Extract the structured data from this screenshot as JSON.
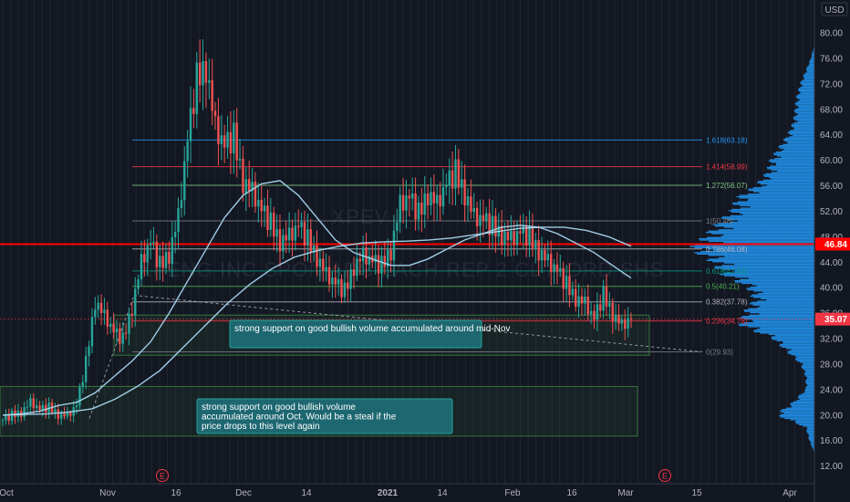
{
  "chart_data": {
    "type": "candlestick",
    "currency": "USD",
    "watermark": "XPENG INC SPON ADS EACH REP 2 CL A ORD SHS",
    "watermark_ticker": "XPEV",
    "x_tick_labels": [
      "Oct",
      "Nov",
      "16",
      "Dec",
      "14",
      "2021",
      "14",
      "Feb",
      "16",
      "Mar",
      "15",
      "Apr"
    ],
    "y_tick_labels": [
      "12.00",
      "16.00",
      "20.00",
      "24.00",
      "28.00",
      "32.00",
      "36.00",
      "40.00",
      "44.00",
      "48.00",
      "52.00",
      "56.00",
      "60.00",
      "64.00",
      "68.00",
      "72.00",
      "76.00",
      "80.00"
    ],
    "ylim": [
      10.5,
      82.5
    ],
    "earnings_markers": [
      "E",
      "E"
    ],
    "current_price": {
      "label": "35.07",
      "value": 35.07,
      "color": "#f23645"
    },
    "horizontal_line": {
      "label": "46.84",
      "value": 46.84,
      "color": "#ff0000"
    },
    "fib_levels": [
      {
        "label": "1.618(63.18)",
        "value": 63.18,
        "color": "#2196f3"
      },
      {
        "label": "1.414(58.99)",
        "value": 58.99,
        "color": "#f23645"
      },
      {
        "label": "1.272(56.07)",
        "value": 56.07,
        "color": "#81c784"
      },
      {
        "label": "1(50.48)",
        "value": 50.48,
        "color": "#787b86"
      },
      {
        "label": "0.786(46.08)",
        "value": 46.08,
        "color": "#b2b5be"
      },
      {
        "label": "0.618(42.63)",
        "value": 42.63,
        "color": "#089981"
      },
      {
        "label": "0.5(40.21)",
        "value": 40.21,
        "color": "#4caf50"
      },
      {
        "label": "0.382(37.78)",
        "value": 37.78,
        "color": "#b2b5be"
      },
      {
        "label": "0.236(34.78)",
        "value": 34.78,
        "color": "#f23645"
      },
      {
        "label": "0(29.93)",
        "value": 29.93,
        "color": "#787b86"
      }
    ],
    "annotations": [
      {
        "text": "strong support on good bullish volume accumulated around mid-Nov"
      },
      {
        "text": "strong support on good bullish volume accumulated around Oct. Would be a steal if the price drops to this level again"
      }
    ],
    "close_path": [
      [
        "Oct",
        19.2
      ],
      [
        "Oct",
        19.8
      ],
      [
        "Oct",
        20.5
      ],
      [
        "Oct",
        22.0
      ],
      [
        "Oct",
        20.8
      ],
      [
        "Oct",
        21.0
      ],
      [
        "Oct",
        20.2
      ],
      [
        "Nov",
        19.8
      ],
      [
        "Nov",
        21.5
      ],
      [
        "Nov",
        28.0
      ],
      [
        "Nov",
        38.0
      ],
      [
        "Nov",
        35.5
      ],
      [
        "Nov",
        33.0
      ],
      [
        "Nov",
        31.5
      ],
      [
        "16",
        37.0
      ],
      [
        "16",
        44.0
      ],
      [
        "16",
        47.0
      ],
      [
        "16",
        43.0
      ],
      [
        "16",
        45.5
      ],
      [
        "16",
        51.0
      ],
      [
        "16",
        63.0
      ],
      [
        "16",
        72.0
      ],
      [
        "16",
        75.0
      ],
      [
        "16",
        65.0
      ],
      [
        "16",
        62.0
      ],
      [
        "Dec",
        63.0
      ],
      [
        "Dec",
        57.0
      ],
      [
        "Dec",
        55.0
      ],
      [
        "Dec",
        52.0
      ],
      [
        "Dec",
        49.5
      ],
      [
        "Dec",
        47.5
      ],
      [
        "14",
        48.0
      ],
      [
        "14",
        49.5
      ],
      [
        "14",
        47.0
      ],
      [
        "14",
        45.0
      ],
      [
        "14",
        42.0
      ],
      [
        "14",
        40.5
      ],
      [
        "14",
        39.0
      ],
      [
        "2021",
        43.5
      ],
      [
        "2021",
        45.0
      ],
      [
        "2021",
        44.0
      ],
      [
        "2021",
        43.0
      ],
      [
        "2021",
        46.0
      ],
      [
        "14",
        53.0
      ],
      [
        "14",
        54.0
      ],
      [
        "14",
        51.0
      ],
      [
        "14",
        55.0
      ],
      [
        "14",
        53.0
      ],
      [
        "14",
        56.0
      ],
      [
        "14",
        57.5
      ],
      [
        "14",
        55.0
      ],
      [
        "Feb",
        51.0
      ],
      [
        "Feb",
        50.5
      ],
      [
        "Feb",
        49.0
      ],
      [
        "Feb",
        48.5
      ],
      [
        "Feb",
        47.5
      ],
      [
        "Feb",
        48.5
      ],
      [
        "Feb",
        47.5
      ],
      [
        "16",
        46.0
      ],
      [
        "16",
        44.0
      ],
      [
        "16",
        42.5
      ],
      [
        "16",
        40.0
      ],
      [
        "16",
        38.5
      ],
      [
        "16",
        37.5
      ],
      [
        "16",
        35.0
      ],
      [
        "Mar",
        38.5
      ],
      [
        "Mar",
        36.0
      ],
      [
        "Mar",
        34.0
      ],
      [
        "Mar",
        35.07
      ]
    ],
    "moving_average_1": [
      20.0,
      20.2,
      20.6,
      21.5,
      22.0,
      23.5,
      26.0,
      28.5,
      31.5,
      36.0,
      41.0,
      46.0,
      51.0,
      54.5,
      56.3,
      56.8,
      54.5,
      51.0,
      47.5,
      45.5,
      44.5,
      43.5,
      43.5,
      44.5,
      46.0,
      47.5,
      48.5,
      49.5,
      49.8,
      49.5,
      48.5,
      47.0,
      45.5,
      43.5,
      41.5
    ],
    "moving_average_2": [
      20.0,
      20.1,
      20.2,
      20.5,
      21.0,
      22.5,
      24.5,
      27.0,
      30.5,
      34.0,
      37.5,
      40.5,
      43.0,
      44.8,
      45.8,
      46.5,
      47.0,
      47.2,
      47.3,
      47.5,
      47.8,
      48.3,
      48.8,
      49.3,
      49.5,
      49.5,
      49.0,
      48.0,
      46.5
    ],
    "volume_profile": [
      [
        12,
        0.0
      ],
      [
        14,
        0.0
      ],
      [
        16,
        0.03
      ],
      [
        18,
        0.05
      ],
      [
        20,
        0.22
      ],
      [
        22,
        0.12
      ],
      [
        24,
        0.05
      ],
      [
        26,
        0.05
      ],
      [
        28,
        0.08
      ],
      [
        30,
        0.16
      ],
      [
        32,
        0.24
      ],
      [
        34,
        0.42
      ],
      [
        36,
        0.4
      ],
      [
        38,
        0.34
      ],
      [
        40,
        0.38
      ],
      [
        42,
        0.52
      ],
      [
        44,
        0.58
      ],
      [
        46,
        0.7
      ],
      [
        48,
        0.62
      ],
      [
        50,
        0.55
      ],
      [
        52,
        0.47
      ],
      [
        54,
        0.44
      ],
      [
        56,
        0.33
      ],
      [
        58,
        0.27
      ],
      [
        60,
        0.25
      ],
      [
        62,
        0.2
      ],
      [
        64,
        0.15
      ],
      [
        66,
        0.12
      ],
      [
        68,
        0.11
      ],
      [
        70,
        0.1
      ],
      [
        72,
        0.08
      ],
      [
        74,
        0.05
      ],
      [
        76,
        0.02
      ],
      [
        78,
        0.0
      ]
    ]
  }
}
